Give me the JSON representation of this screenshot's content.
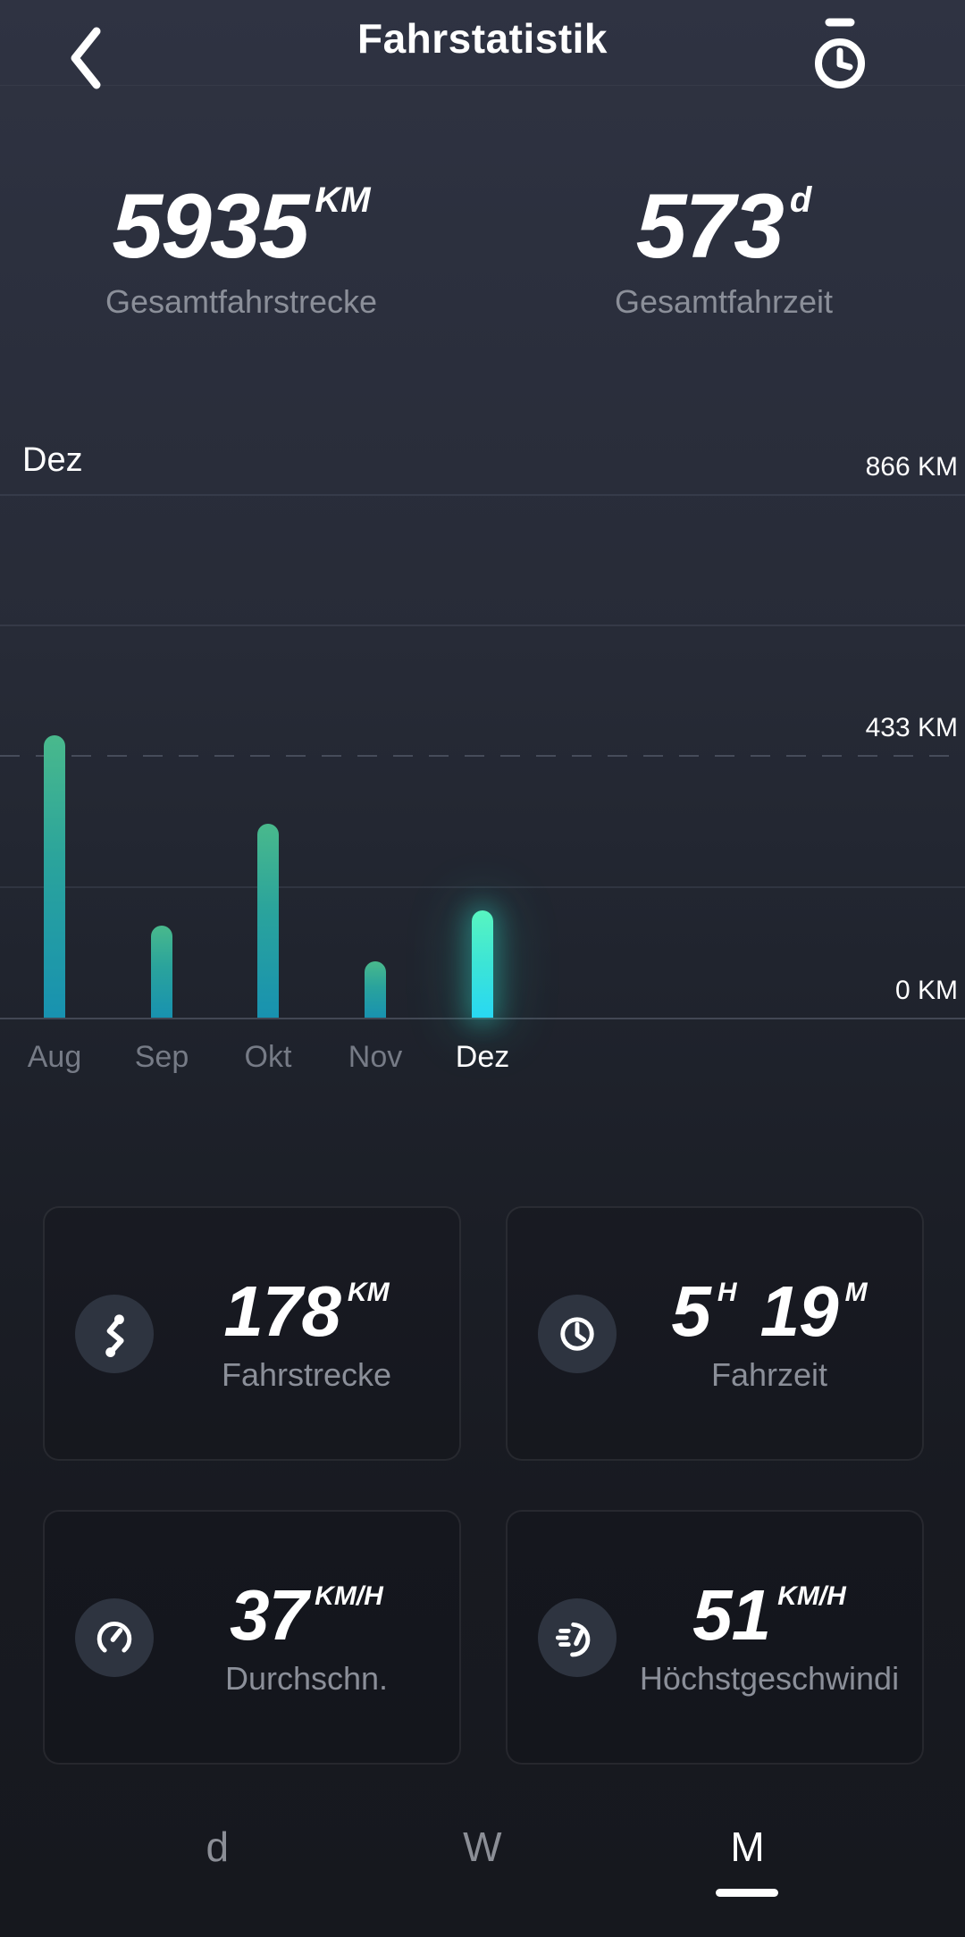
{
  "header": {
    "title": "Fahrstatistik",
    "back_icon": "chevron-left",
    "history_icon": "stopwatch"
  },
  "totals": [
    {
      "value": "5935",
      "unit": "KM",
      "label": "Gesamtfahrstrecke"
    },
    {
      "value": "573",
      "unit": "d",
      "label": "Gesamtfahrzeit"
    }
  ],
  "chart_data": {
    "type": "bar",
    "selected_month_label": "Dez",
    "categories": [
      "Aug",
      "Sep",
      "Okt",
      "Nov",
      "Dez"
    ],
    "values": [
      467,
      152,
      321,
      93,
      178
    ],
    "unit": "KM",
    "selected_index": 4,
    "y_ticks": [
      "866 KM",
      "433 KM",
      "0 KM"
    ],
    "ylim": [
      0,
      866
    ],
    "grid": "horizontal, middle line dashed",
    "legend": "none",
    "bar_color_top": "#49b98c",
    "bar_color_bottom": "#1892b0",
    "selected_bar_color_top": "#58f5c0",
    "selected_bar_color_bottom": "#28d8f3"
  },
  "cards": [
    {
      "icon": "route-icon",
      "value": "178",
      "unit": "KM",
      "label": "Fahrstrecke"
    },
    {
      "icon": "clock-icon",
      "value": "5",
      "unit": "H",
      "value2": "19",
      "unit2": "M",
      "label": "Fahrzeit"
    },
    {
      "icon": "speedometer-icon",
      "value": "37",
      "unit": "KM/H",
      "label": "Durchschn."
    },
    {
      "icon": "max-speed-icon",
      "value": "51",
      "unit": "KM/H",
      "label": "Höchstgeschwindi"
    }
  ],
  "tabs": [
    {
      "label": "d",
      "active": false
    },
    {
      "label": "W",
      "active": false
    },
    {
      "label": "M",
      "active": true
    }
  ],
  "colors": {
    "background_top": "#2f3342",
    "background_bottom": "#16181e",
    "text_primary": "#ffffff",
    "text_secondary": "#8b8f99",
    "accent_glow": "#30e8d0"
  }
}
